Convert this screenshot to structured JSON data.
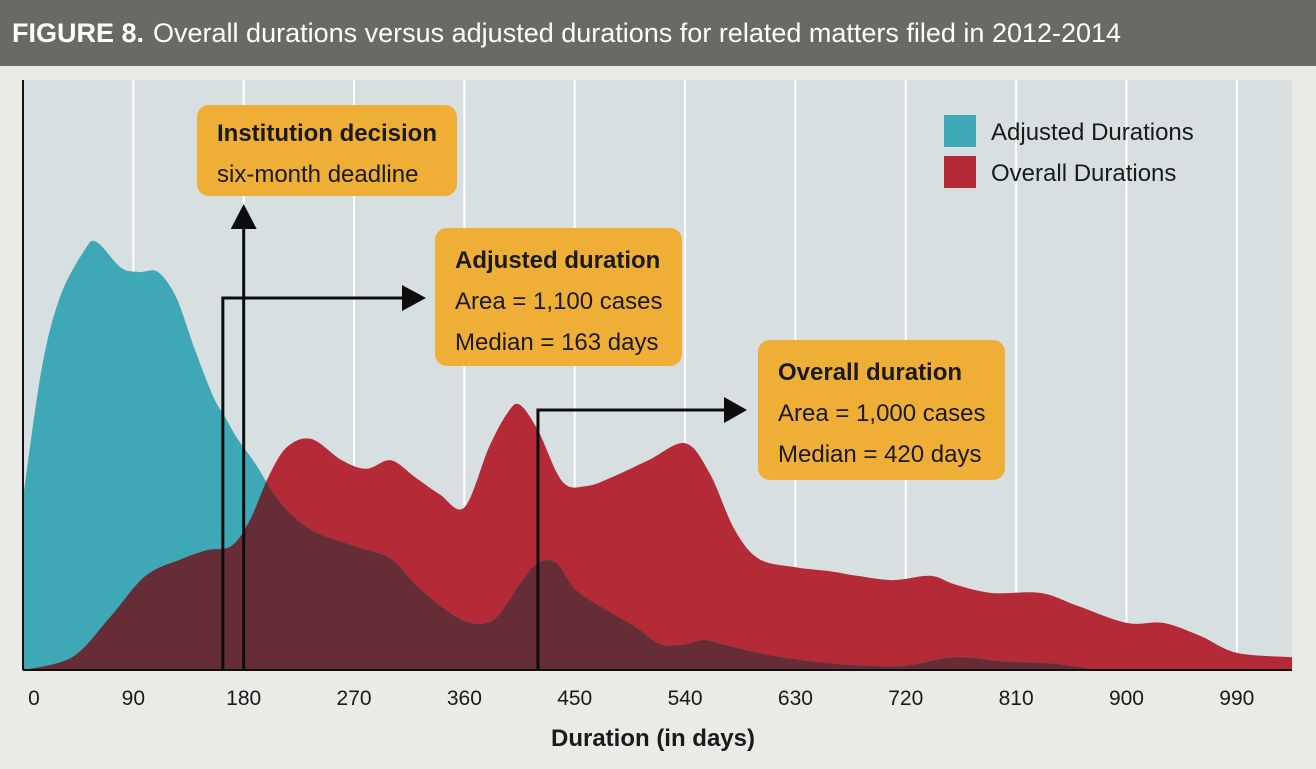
{
  "figure_label": "FIGURE 8.",
  "figure_title": "Overall durations versus adjusted durations for related matters filed in 2012-2014",
  "colors": {
    "adjusted": "#3fa8b6",
    "overall": "#b52a37",
    "overlap": "#662d37",
    "callout": "#efae36",
    "plot_bg": "#d8dfe0",
    "title_bar": "#686b63"
  },
  "callouts": {
    "institution": {
      "heading": "Institution decision",
      "line1": "six-month deadline"
    },
    "adjusted": {
      "heading": "Adjusted duration",
      "line1": "Area = 1,100 cases",
      "line2": "Median = 163 days"
    },
    "overall": {
      "heading": "Overall duration",
      "line1": "Area = 1,000 cases",
      "line2": "Median = 420 days"
    }
  },
  "chart_data": {
    "type": "area",
    "xlabel": "Duration (in days)",
    "ylabel": "",
    "xlim": [
      0,
      1035
    ],
    "ylim": [
      0,
      1
    ],
    "xticks": [
      0,
      90,
      180,
      270,
      360,
      450,
      540,
      630,
      720,
      810,
      900,
      990
    ],
    "grid": true,
    "legend_position": "top-right",
    "legend": [
      "Adjusted Durations",
      "Overall Durations"
    ],
    "series": [
      {
        "name": "Adjusted Durations",
        "x": [
          0,
          15,
          30,
          50,
          60,
          80,
          95,
          110,
          125,
          140,
          155,
          165,
          175,
          190,
          205,
          220,
          240,
          270,
          300,
          320,
          345,
          365,
          385,
          405,
          420,
          435,
          450,
          470,
          500,
          520,
          540,
          555,
          570,
          600,
          630,
          660,
          690,
          720,
          760,
          800,
          840,
          880,
          900,
          990,
          1035
        ],
        "y": [
          0.4,
          0.7,
          0.87,
          0.98,
          1.0,
          0.94,
          0.93,
          0.93,
          0.87,
          0.75,
          0.64,
          0.59,
          0.54,
          0.48,
          0.41,
          0.36,
          0.32,
          0.29,
          0.26,
          0.2,
          0.14,
          0.11,
          0.12,
          0.2,
          0.25,
          0.25,
          0.19,
          0.15,
          0.1,
          0.06,
          0.06,
          0.07,
          0.06,
          0.04,
          0.025,
          0.015,
          0.01,
          0.01,
          0.03,
          0.02,
          0.015,
          0.0,
          0.0,
          0.0,
          0.0
        ]
      },
      {
        "name": "Overall Durations",
        "x": [
          0,
          40,
          70,
          100,
          130,
          150,
          170,
          185,
          200,
          215,
          235,
          260,
          280,
          300,
          320,
          340,
          360,
          380,
          395,
          405,
          420,
          440,
          460,
          480,
          510,
          540,
          560,
          580,
          600,
          630,
          660,
          680,
          710,
          740,
          760,
          790,
          830,
          860,
          900,
          930,
          960,
          990,
          1035
        ],
        "y": [
          0.0,
          0.03,
          0.12,
          0.22,
          0.26,
          0.28,
          0.29,
          0.35,
          0.45,
          0.52,
          0.54,
          0.49,
          0.47,
          0.49,
          0.45,
          0.41,
          0.38,
          0.52,
          0.6,
          0.62,
          0.56,
          0.44,
          0.43,
          0.45,
          0.49,
          0.53,
          0.46,
          0.33,
          0.26,
          0.24,
          0.23,
          0.22,
          0.21,
          0.22,
          0.2,
          0.18,
          0.18,
          0.15,
          0.11,
          0.11,
          0.08,
          0.04,
          0.03
        ]
      }
    ],
    "annotations": [
      {
        "label": "Institution decision six-month deadline",
        "x": 180
      },
      {
        "label": "Adjusted duration median",
        "x": 163
      },
      {
        "label": "Overall duration median",
        "x": 420
      }
    ]
  }
}
